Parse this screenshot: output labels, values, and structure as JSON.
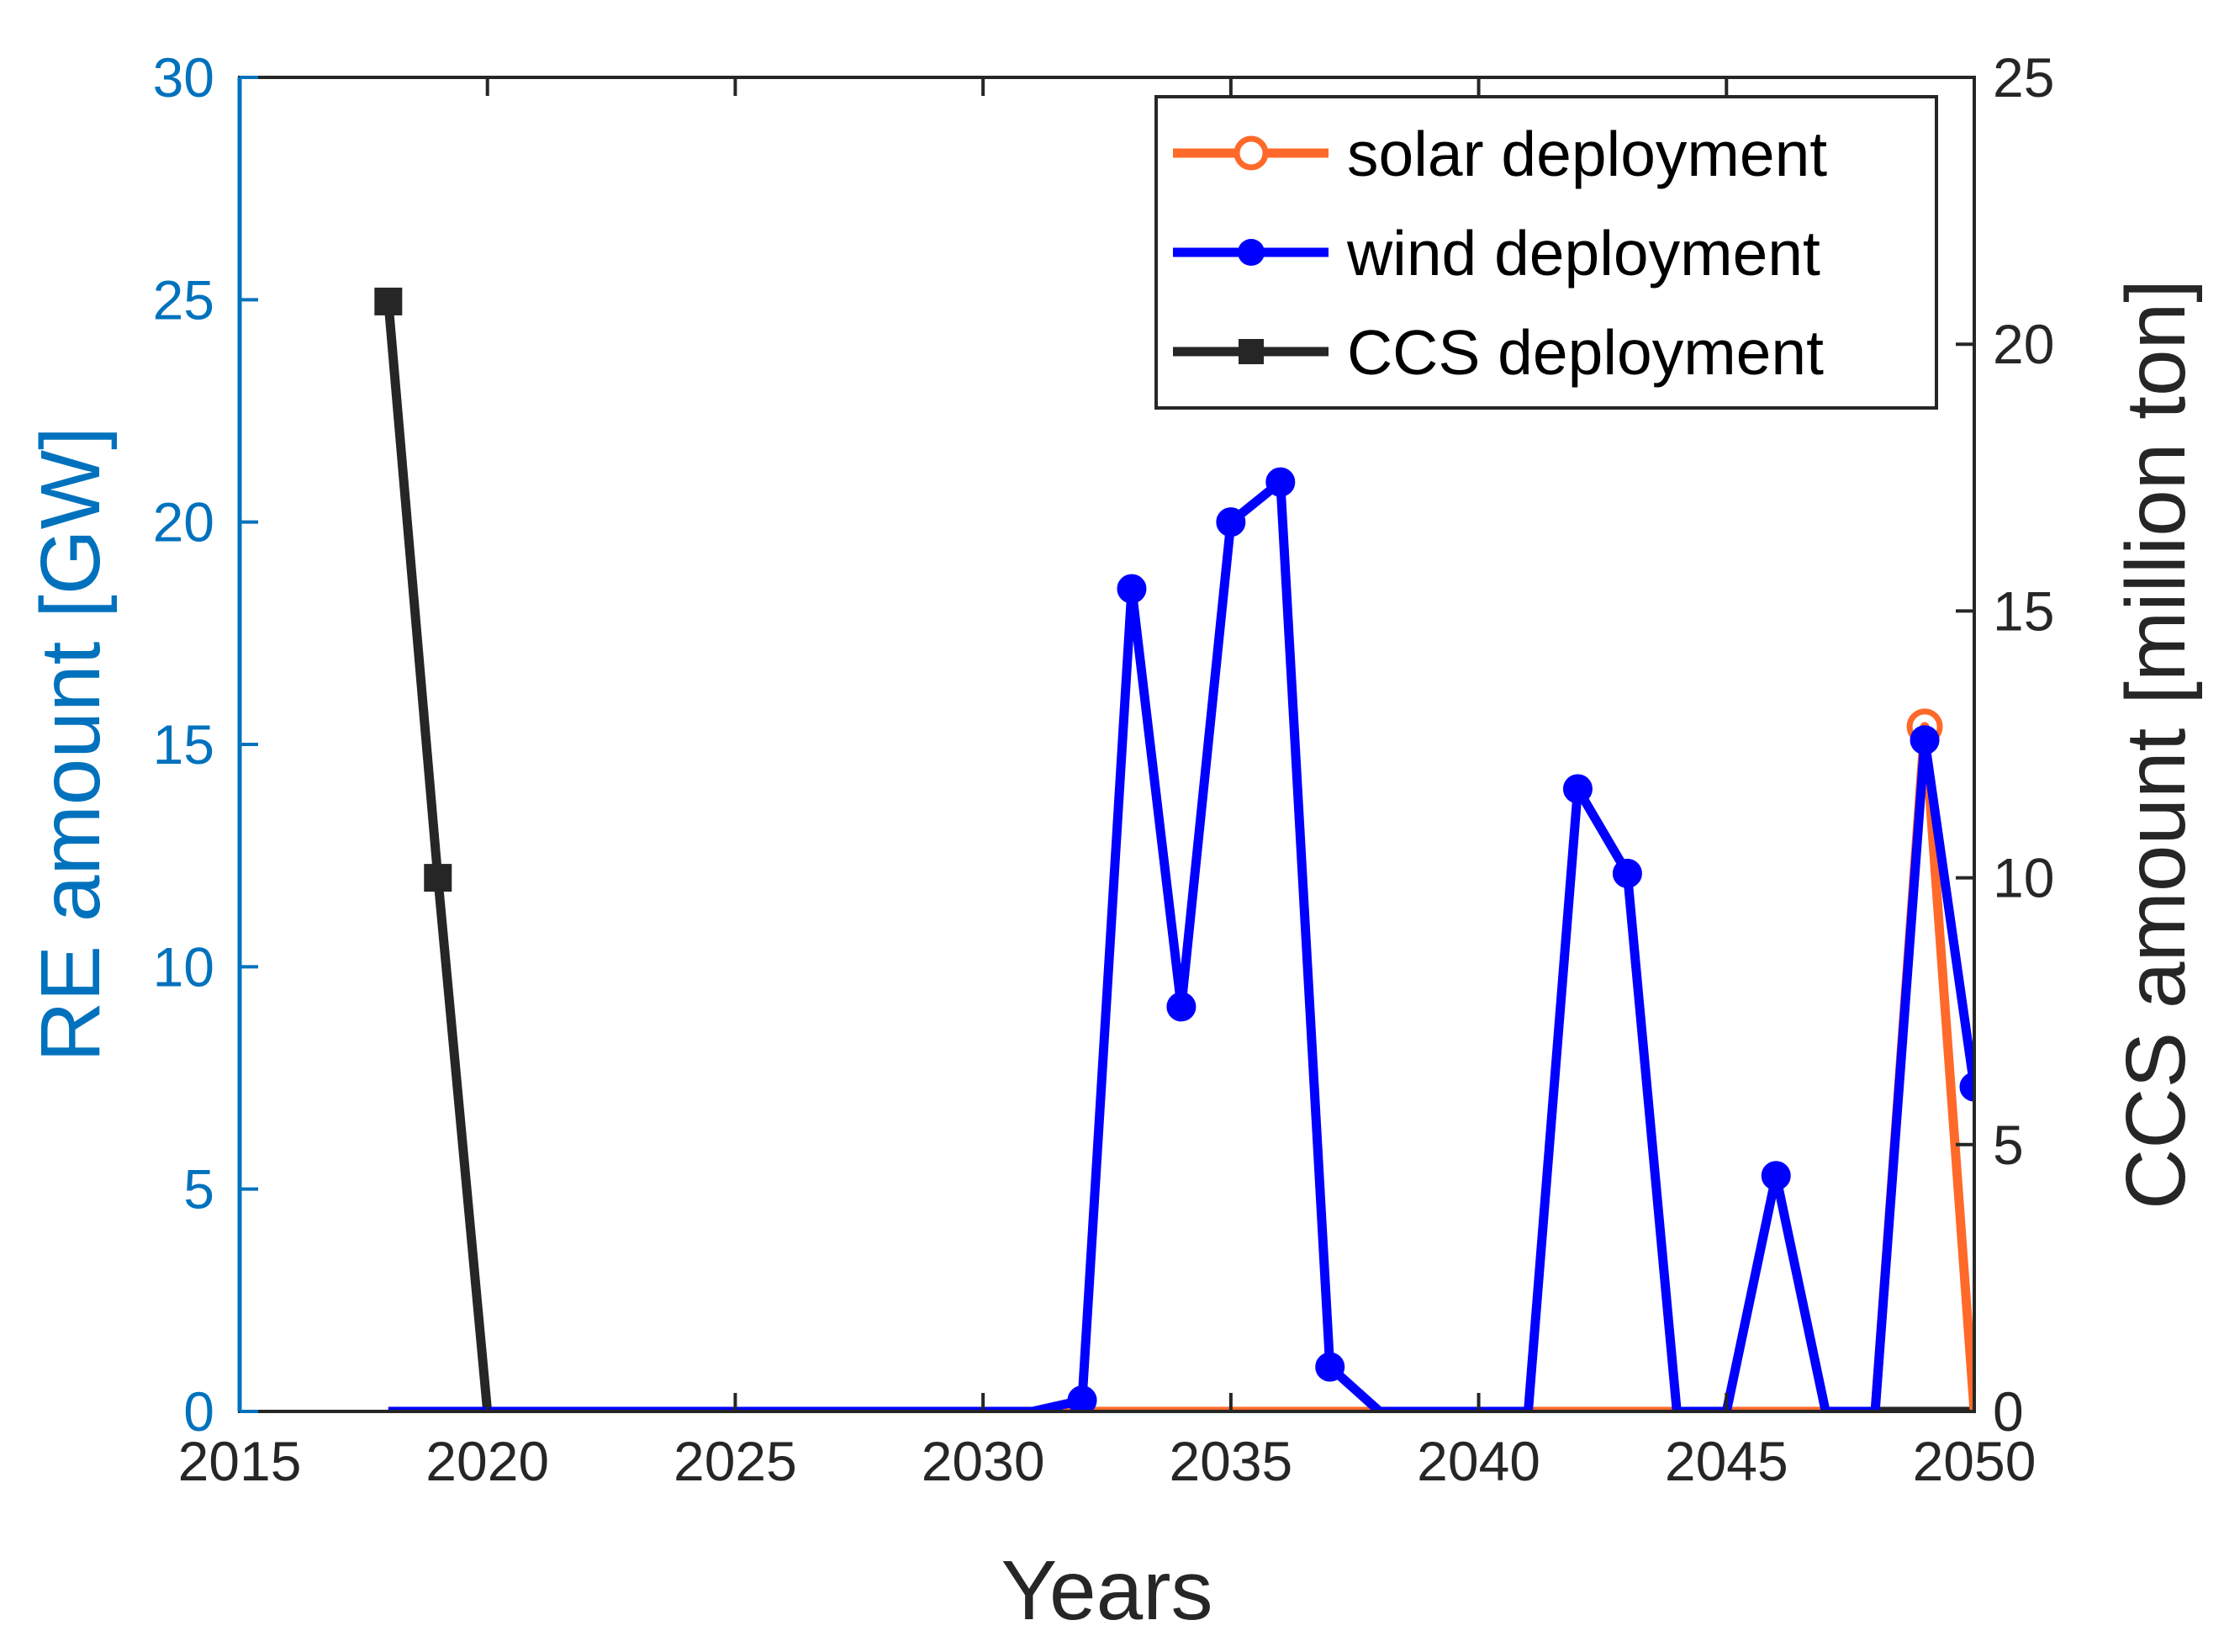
{
  "chart_data": {
    "type": "line",
    "title": "",
    "xlabel": "Years",
    "ylabel_left": "RE amount [GW]",
    "ylabel_right": "CCS amount [million ton]",
    "xlim": [
      2015,
      2050
    ],
    "ylim_left": [
      0,
      30
    ],
    "ylim_right": [
      0,
      25
    ],
    "xticks": [
      "2015",
      "2020",
      "2025",
      "2030",
      "2035",
      "2040",
      "2045",
      "2050"
    ],
    "yticks_left": [
      "0",
      "5",
      "10",
      "15",
      "20",
      "25",
      "30"
    ],
    "yticks_right": [
      "0",
      "5",
      "10",
      "15",
      "20",
      "25"
    ],
    "legend_position": "top-right",
    "colors": {
      "left_axis": "#0072BD",
      "right_axis": "#262626",
      "solar": "#FF6929",
      "wind": "#0000FF",
      "ccs": "#262626"
    },
    "series": [
      {
        "name": "solar deployment",
        "axis": "left",
        "marker": "circle-open",
        "x": [
          2018,
          2019,
          2020,
          2021,
          2022,
          2023,
          2024,
          2025,
          2026,
          2027,
          2028,
          2029,
          2030,
          2031,
          2032,
          2033,
          2034,
          2035,
          2036,
          2037,
          2038,
          2039,
          2040,
          2041,
          2042,
          2043,
          2044,
          2045,
          2046,
          2047,
          2048,
          2049,
          2050
        ],
        "values": [
          0,
          0,
          0,
          0,
          0,
          0,
          0,
          0,
          0,
          0,
          0,
          0,
          0,
          0,
          0,
          0,
          0,
          0,
          0,
          0,
          0,
          0,
          0,
          0,
          0,
          0,
          0,
          0,
          0,
          0,
          0,
          15.4,
          0
        ]
      },
      {
        "name": "wind deployment",
        "axis": "left",
        "marker": "circle-filled",
        "x": [
          2018,
          2019,
          2020,
          2021,
          2022,
          2023,
          2024,
          2025,
          2026,
          2027,
          2028,
          2029,
          2030,
          2031,
          2032,
          2033,
          2034,
          2035,
          2036,
          2037,
          2038,
          2039,
          2040,
          2041,
          2042,
          2043,
          2044,
          2045,
          2046,
          2047,
          2048,
          2049,
          2050
        ],
        "values": [
          0,
          0,
          0,
          0,
          0,
          0,
          0,
          0,
          0,
          0,
          0,
          0,
          0,
          0,
          0.25,
          18.5,
          9.1,
          20.0,
          20.9,
          1.0,
          0,
          0,
          0,
          0,
          14.0,
          12.1,
          0,
          0,
          5.3,
          0,
          0,
          15.1,
          7.3
        ]
      },
      {
        "name": "CCS deployment",
        "axis": "right",
        "marker": "square-filled",
        "x": [
          2018,
          2019,
          2020,
          2021,
          2022,
          2023,
          2024,
          2025,
          2026,
          2027,
          2028,
          2029,
          2030,
          2031,
          2032,
          2033,
          2034,
          2035,
          2036,
          2037,
          2038,
          2039,
          2040,
          2041,
          2042,
          2043,
          2044,
          2045,
          2046,
          2047,
          2048,
          2049,
          2050
        ],
        "values": [
          20.8,
          10.0,
          0,
          0,
          0,
          0,
          0,
          0,
          0,
          0,
          0,
          0,
          0,
          0,
          0,
          0,
          0,
          0,
          0,
          0,
          0,
          0,
          0,
          0,
          0,
          0,
          0,
          0,
          0,
          0,
          0,
          0,
          0
        ]
      }
    ]
  }
}
